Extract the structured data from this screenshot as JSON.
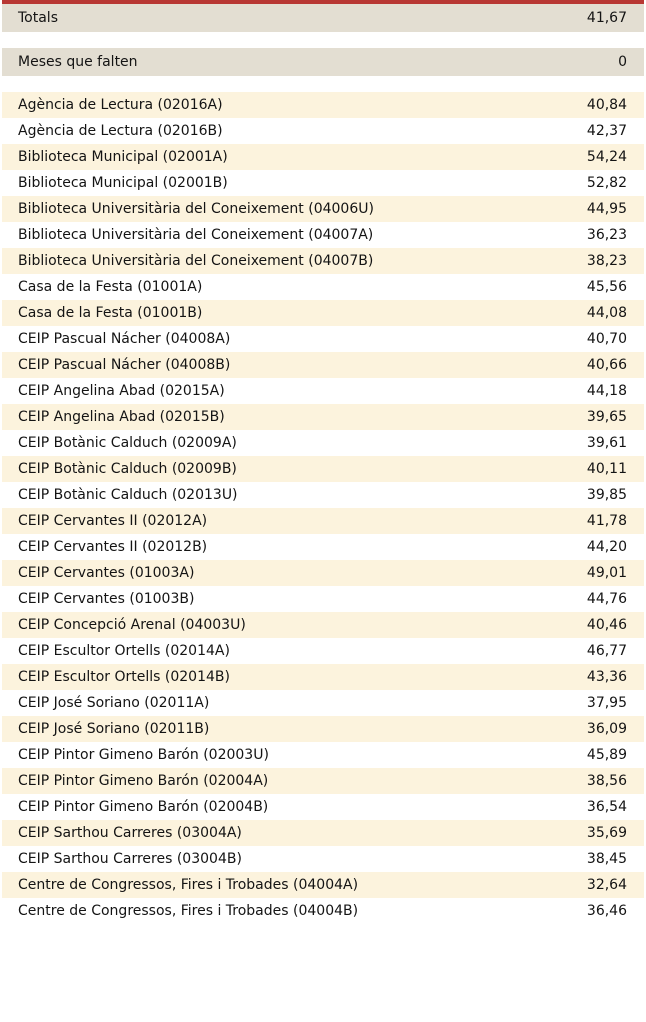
{
  "colors": {
    "accent_red": "#b83733",
    "summary_bg": "#e3ded2",
    "row_alt_bg": "#fcf3dd",
    "row_bg": "#ffffff",
    "text": "#141414"
  },
  "summary": [
    {
      "label": "Totals",
      "value": "41,67"
    },
    {
      "label": "Meses que falten",
      "value": "0"
    }
  ],
  "rows": [
    {
      "name": "Agència de Lectura (02016A)",
      "value": "40,84"
    },
    {
      "name": "Agència de Lectura (02016B)",
      "value": "42,37"
    },
    {
      "name": "Biblioteca Municipal (02001A)",
      "value": "54,24"
    },
    {
      "name": "Biblioteca Municipal (02001B)",
      "value": "52,82"
    },
    {
      "name": "Biblioteca Universitària del Coneixement (04006U)",
      "value": "44,95"
    },
    {
      "name": "Biblioteca Universitària del Coneixement (04007A)",
      "value": "36,23"
    },
    {
      "name": "Biblioteca Universitària del Coneixement (04007B)",
      "value": "38,23"
    },
    {
      "name": "Casa de la Festa (01001A)",
      "value": "45,56"
    },
    {
      "name": "Casa de la Festa (01001B)",
      "value": "44,08"
    },
    {
      "name": "CEIP Pascual Nácher (04008A)",
      "value": "40,70"
    },
    {
      "name": "CEIP Pascual Nácher (04008B)",
      "value": "40,66"
    },
    {
      "name": "CEIP Angelina Abad (02015A)",
      "value": "44,18"
    },
    {
      "name": "CEIP Angelina Abad (02015B)",
      "value": "39,65"
    },
    {
      "name": "CEIP Botànic Calduch (02009A)",
      "value": "39,61"
    },
    {
      "name": "CEIP Botànic Calduch (02009B)",
      "value": "40,11"
    },
    {
      "name": "CEIP Botànic Calduch (02013U)",
      "value": "39,85"
    },
    {
      "name": "CEIP Cervantes II (02012A)",
      "value": "41,78"
    },
    {
      "name": "CEIP Cervantes II (02012B)",
      "value": "44,20"
    },
    {
      "name": "CEIP Cervantes (01003A)",
      "value": "49,01"
    },
    {
      "name": "CEIP Cervantes (01003B)",
      "value": "44,76"
    },
    {
      "name": "CEIP Concepció Arenal (04003U)",
      "value": "40,46"
    },
    {
      "name": "CEIP Escultor Ortells (02014A)",
      "value": "46,77"
    },
    {
      "name": "CEIP Escultor Ortells (02014B)",
      "value": "43,36"
    },
    {
      "name": "CEIP José Soriano (02011A)",
      "value": "37,95"
    },
    {
      "name": "CEIP José Soriano (02011B)",
      "value": "36,09"
    },
    {
      "name": "CEIP Pintor Gimeno Barón (02003U)",
      "value": "45,89"
    },
    {
      "name": "CEIP Pintor Gimeno Barón (02004A)",
      "value": "38,56"
    },
    {
      "name": "CEIP Pintor Gimeno Barón (02004B)",
      "value": "36,54"
    },
    {
      "name": "CEIP Sarthou Carreres (03004A)",
      "value": "35,69"
    },
    {
      "name": "CEIP Sarthou Carreres (03004B)",
      "value": "38,45"
    },
    {
      "name": "Centre de Congressos, Fires i Trobades (04004A)",
      "value": "32,64"
    },
    {
      "name": "Centre de Congressos, Fires i Trobades (04004B)",
      "value": "36,46"
    }
  ]
}
